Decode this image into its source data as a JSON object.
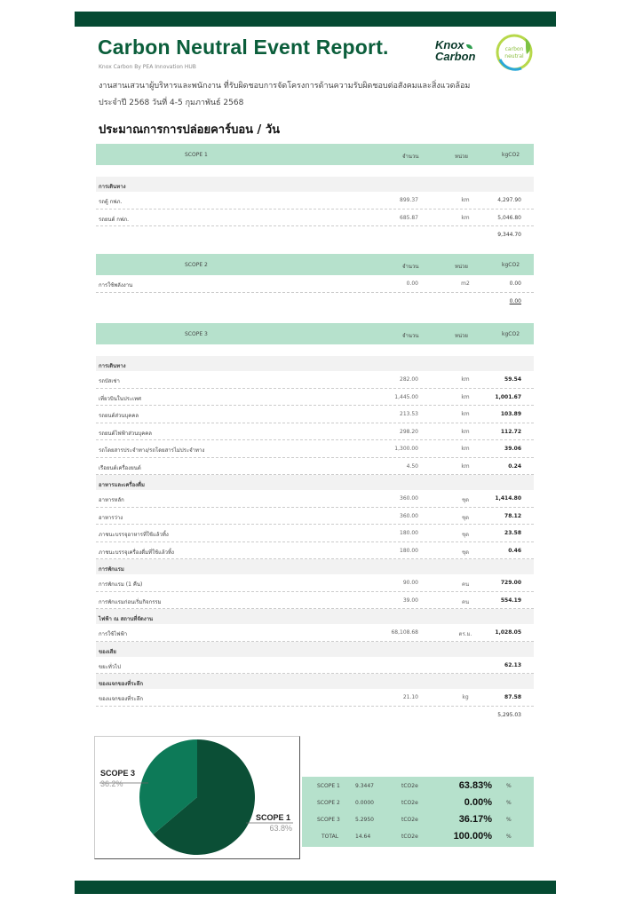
{
  "header": {
    "title": "Carbon Neutral Event Report.",
    "subtitle": "Knox Carbon By PEA Innovation HUB",
    "event_line": "งานสานเสวนาผู้บริหารและพนักงาน ที่รับผิดชอบการจัดโครงการด้านความรับผิดชอบต่อสังคมและสิ่งแวดล้อม",
    "date_line": "ประจำปี 2568 วันที่ 4-5 กุมภาพันธ์ 2568",
    "logo_text": [
      "Knox",
      "Carbon"
    ],
    "badge_text": [
      "carbon",
      "neutral"
    ],
    "section_title": "ประมาณการการปล่อยคาร์บอน   / วัน"
  },
  "columns": {
    "qty": "จำนวน",
    "unit": "หน่วย",
    "kg": "kgCO2"
  },
  "colors": {
    "brand_dark": "#054a32",
    "header_mint": "#b6e1cc",
    "scope1": "#0b4f36",
    "scope3": "#0d7a58"
  },
  "scopes": [
    {
      "name": "SCOPE 1",
      "total": "9,344.70",
      "rows": [
        {
          "category": "การเดินทาง"
        },
        {
          "name": "รถตู้ กฟภ.",
          "qty": "899.37",
          "unit": "km",
          "kg": "4,297.90"
        },
        {
          "name": "รถยนต์ กฟภ.",
          "qty": "685.87",
          "unit": "km",
          "kg": "5,046.80"
        }
      ]
    },
    {
      "name": "SCOPE 2",
      "total": "0.00",
      "rows": [
        {
          "name": "การใช้พลังงาน",
          "qty": "0.00",
          "unit": "m2",
          "kg": "0.00"
        }
      ]
    },
    {
      "name": "SCOPE 3",
      "total": "5,295.03",
      "rows": [
        {
          "category": "การเดินทาง"
        },
        {
          "name": "รถบัสเช่า",
          "qty": "282.00",
          "unit": "km",
          "kg": "59.54"
        },
        {
          "name": "เที่ยวบินในประเทศ",
          "qty": "1,445.00",
          "unit": "km",
          "kg": "1,001.67"
        },
        {
          "name": "รถยนต์ส่วนบุคคล",
          "qty": "213.53",
          "unit": "km",
          "kg": "103.89"
        },
        {
          "name": "รถยนต์ไฟฟ้าส่วนบุคคล",
          "qty": "298.20",
          "unit": "km",
          "kg": "112.72"
        },
        {
          "name": "รถโดยสารประจำทาง/รถโดยสารไม่ประจำทาง",
          "qty": "1,300.00",
          "unit": "km",
          "kg": "39.06"
        },
        {
          "name": "เรือยนต์เครื่องยนต์",
          "qty": "4.50",
          "unit": "km",
          "kg": "0.24"
        },
        {
          "category": "อาหารและเครื่องดื่ม"
        },
        {
          "name": "อาหารหลัก",
          "qty": "360.00",
          "unit": "ชุด",
          "kg": "1,414.80"
        },
        {
          "name": "อาหารว่าง",
          "qty": "360.00",
          "unit": "ชุด",
          "kg": "78.12"
        },
        {
          "name": "ภาชนะบรรจุอาหารที่ใช้แล้วทิ้ง",
          "qty": "180.00",
          "unit": "ชุด",
          "kg": "23.58"
        },
        {
          "name": "ภาชนะบรรจุเครื่องดื่มที่ใช้แล้วทิ้ง",
          "qty": "180.00",
          "unit": "ชุด",
          "kg": "0.46"
        },
        {
          "category": "การพักแรม"
        },
        {
          "name": "การพักแรม (1 คืน)",
          "qty": "90.00",
          "unit": "คน",
          "kg": "729.00"
        },
        {
          "name": "การพักแรมก่อนเริ่มกิจกรรม",
          "qty": "39.00",
          "unit": "คน",
          "kg": "554.19"
        },
        {
          "category": "ไฟฟ้า ณ สถานที่จัดงาน"
        },
        {
          "name": "การใช้ไฟฟ้า",
          "qty": "68,108.68",
          "unit": "ตร.ม.",
          "kg": "1,028.05"
        },
        {
          "category": "ของเสีย"
        },
        {
          "name": "ขยะทั่วไป",
          "qty": "",
          "unit": "",
          "kg": "62.13"
        },
        {
          "category": "ของแจกของที่ระลึก"
        },
        {
          "name": "ของแจกของที่ระลึก",
          "qty": "21.10",
          "unit": "kg",
          "kg": "87.58"
        }
      ]
    }
  ],
  "pie": {
    "slices": [
      {
        "label": "SCOPE 1",
        "percent_label": "63.8%",
        "value": 63.8
      },
      {
        "label": "SCOPE 3",
        "percent_label": "36.2%",
        "value": 36.2
      }
    ]
  },
  "summary": [
    {
      "scope": "SCOPE 1",
      "value": "9.3447",
      "unit": "tCO2e",
      "pct": "63.83%",
      "sym": "%"
    },
    {
      "scope": "SCOPE 2",
      "value": "0.0000",
      "unit": "tCO2e",
      "pct": "0.00%",
      "sym": "%"
    },
    {
      "scope": "SCOPE 3",
      "value": "5.2950",
      "unit": "tCO2e",
      "pct": "36.17%",
      "sym": "%"
    },
    {
      "scope": "TOTAL",
      "value": "14.64",
      "unit": "tCO2e",
      "pct": "100.00%",
      "sym": "%"
    }
  ]
}
